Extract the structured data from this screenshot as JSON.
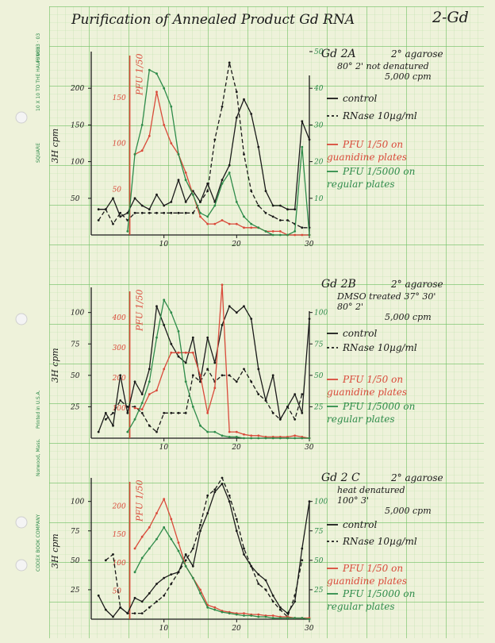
{
  "page": {
    "title": "Purification of Annealed Product Gd RNA",
    "sheet_label": "2-Gd",
    "side_print": [
      "SQUARE",
      "10 X 10 TO THE HALF INCH",
      "46 0813 · 03"
    ],
    "side_print_lower": [
      "CODEX BOOK COMPANY",
      "Norwood, Mass.",
      "Printed in U.S.A."
    ],
    "colors": {
      "paper": "#eef2da",
      "grid_fine": "#b9e0a8",
      "grid_bold": "#6fbf62",
      "ink": "#1a1a1a",
      "red": "#d94a3a",
      "green": "#2e8b4a",
      "holes": "#f4f4f4"
    }
  },
  "chart_data": [
    {
      "type": "line",
      "id": "gd-2a",
      "title": "Gd 2A",
      "notes": [
        "2° agarose",
        "80° 2' not denatured",
        "5,000 cpm"
      ],
      "ylabel": "3H cpm",
      "ylabel_right": "PFU 1/50",
      "x": [
        1,
        2,
        3,
        4,
        5,
        6,
        7,
        8,
        9,
        10,
        11,
        12,
        13,
        14,
        15,
        16,
        17,
        18,
        19,
        20,
        21,
        22,
        23,
        24,
        25,
        26,
        27,
        28,
        29,
        30
      ],
      "xticks": [
        10,
        20,
        30
      ],
      "xlim": [
        0,
        30
      ],
      "left_axis": {
        "ylim": [
          0,
          250
        ],
        "ticks": [
          50,
          100,
          150,
          200
        ]
      },
      "right_axis": {
        "ylim": [
          0,
          50
        ],
        "ticks": [
          10,
          20,
          30,
          40,
          50
        ]
      },
      "pfu_axis": {
        "ticks": [
          50,
          100,
          150
        ]
      },
      "series": [
        {
          "name": "control",
          "style": "solid",
          "color": "ink",
          "axis": "left",
          "values": [
            35,
            35,
            50,
            25,
            30,
            50,
            40,
            35,
            55,
            40,
            45,
            75,
            45,
            60,
            45,
            70,
            45,
            75,
            95,
            160,
            185,
            165,
            120,
            60,
            40,
            40,
            35,
            35,
            155,
            130
          ]
        },
        {
          "name": "RNase 10µg/ml",
          "style": "dashed",
          "color": "ink",
          "axis": "left",
          "values": [
            20,
            35,
            15,
            30,
            20,
            30,
            30,
            30,
            30,
            30,
            30,
            30,
            30,
            30,
            45,
            60,
            130,
            175,
            235,
            195,
            110,
            60,
            40,
            30,
            25,
            20,
            20,
            15,
            10,
            10
          ]
        },
        {
          "name": "PFU 1/50 on guanidine plates",
          "style": "solid",
          "color": "red",
          "axis": "right",
          "values": [
            null,
            null,
            null,
            null,
            null,
            22,
            23,
            27,
            39,
            30,
            25,
            22,
            17,
            11,
            5,
            3,
            3,
            4,
            3,
            3,
            2,
            2,
            2,
            1,
            1,
            1,
            0,
            0,
            0,
            0
          ]
        },
        {
          "name": "PFU 1/5000 on regular plates",
          "style": "solid",
          "color": "green",
          "axis": "right",
          "values": [
            null,
            null,
            null,
            null,
            1,
            22,
            30,
            45,
            44,
            40,
            35,
            22,
            15,
            11,
            6,
            5,
            8,
            14,
            17,
            9,
            5,
            3,
            2,
            1,
            0,
            0,
            0,
            1,
            24,
            0
          ]
        }
      ]
    },
    {
      "type": "line",
      "id": "gd-2b",
      "title": "Gd 2B",
      "notes": [
        "2° agarose",
        "DMSO treated 37° 30'",
        "80° 2'",
        "5,000 cpm"
      ],
      "ylabel": "3H cpm",
      "ylabel_right": "PFU 1/50",
      "x": [
        1,
        2,
        3,
        4,
        5,
        6,
        7,
        8,
        9,
        10,
        11,
        12,
        13,
        14,
        15,
        16,
        17,
        18,
        19,
        20,
        21,
        22,
        23,
        24,
        25,
        26,
        27,
        28,
        29,
        30
      ],
      "xticks": [
        10,
        20,
        30
      ],
      "xlim": [
        0,
        30
      ],
      "left_axis": {
        "ylim": [
          0,
          120
        ],
        "ticks": [
          25,
          50,
          75,
          100
        ]
      },
      "right_axis": {
        "ylim": [
          0,
          120
        ],
        "ticks": [
          25,
          50,
          75,
          100
        ]
      },
      "pfu_axis": {
        "ticks": [
          100,
          200,
          300,
          400
        ]
      },
      "series": [
        {
          "name": "control",
          "style": "solid",
          "color": "ink",
          "axis": "left",
          "values": [
            5,
            20,
            10,
            50,
            20,
            45,
            35,
            55,
            105,
            90,
            75,
            65,
            60,
            80,
            45,
            80,
            60,
            90,
            105,
            100,
            105,
            95,
            55,
            30,
            50,
            15,
            25,
            35,
            20,
            95
          ]
        },
        {
          "name": "RNase 10µg/ml",
          "style": "dashed",
          "color": "ink",
          "axis": "left",
          "values": [
            null,
            15,
            20,
            30,
            25,
            25,
            20,
            10,
            5,
            20,
            20,
            20,
            20,
            50,
            45,
            55,
            45,
            50,
            50,
            45,
            55,
            45,
            35,
            30,
            20,
            15,
            25,
            15,
            35,
            null
          ]
        },
        {
          "name": "PFU 1/50 on guanidine plates",
          "style": "solid",
          "color": "red",
          "axis": "right",
          "values": [
            null,
            null,
            null,
            null,
            null,
            24,
            23,
            35,
            38,
            55,
            68,
            68,
            68,
            68,
            50,
            20,
            40,
            122,
            5,
            5,
            3,
            2,
            2,
            1,
            1,
            1,
            1,
            2,
            1,
            0
          ]
        },
        {
          "name": "PFU 1/5000 on regular plates",
          "style": "solid",
          "color": "green",
          "axis": "right",
          "values": [
            null,
            null,
            null,
            null,
            5,
            15,
            28,
            45,
            80,
            110,
            100,
            85,
            45,
            25,
            10,
            5,
            5,
            2,
            1,
            1,
            0,
            0,
            0,
            0,
            0,
            0,
            0,
            0,
            0,
            0
          ]
        }
      ]
    },
    {
      "type": "line",
      "id": "gd-2c",
      "title": "Gd 2 C",
      "notes": [
        "2° agarose",
        "heat denatured",
        "100° 3'",
        "5,000 cpm"
      ],
      "ylabel": "3H cpm",
      "ylabel_right": "PFU 1/50",
      "x": [
        1,
        2,
        3,
        4,
        5,
        6,
        7,
        8,
        9,
        10,
        11,
        12,
        13,
        14,
        15,
        16,
        17,
        18,
        19,
        20,
        21,
        22,
        23,
        24,
        25,
        26,
        27,
        28,
        29,
        30
      ],
      "xticks": [
        10,
        20,
        30
      ],
      "xlim": [
        0,
        30
      ],
      "left_axis": {
        "ylim": [
          0,
          120
        ],
        "ticks": [
          25,
          50,
          75,
          100
        ]
      },
      "right_axis": {
        "ylim": [
          0,
          120
        ],
        "ticks": [
          25,
          50,
          75,
          100
        ]
      },
      "pfu_axis": {
        "ticks": [
          50,
          100,
          150,
          200
        ]
      },
      "series": [
        {
          "name": "control",
          "style": "solid",
          "color": "ink",
          "axis": "left",
          "values": [
            20,
            8,
            2,
            10,
            5,
            18,
            15,
            22,
            30,
            35,
            38,
            40,
            55,
            45,
            75,
            90,
            108,
            115,
            100,
            75,
            55,
            45,
            38,
            33,
            20,
            10,
            5,
            15,
            60,
            100
          ]
        },
        {
          "name": "RNase 10µg/ml",
          "style": "dashed",
          "color": "ink",
          "axis": "left",
          "values": [
            null,
            50,
            55,
            10,
            5,
            5,
            5,
            10,
            15,
            20,
            30,
            40,
            50,
            60,
            80,
            105,
            110,
            120,
            105,
            85,
            60,
            45,
            30,
            25,
            15,
            8,
            2,
            20,
            50,
            null
          ]
        },
        {
          "name": "PFU 1/50 on guanidine plates",
          "style": "solid",
          "color": "red",
          "axis": "right",
          "values": [
            null,
            null,
            null,
            null,
            null,
            60,
            70,
            78,
            90,
            102,
            85,
            65,
            45,
            35,
            25,
            12,
            10,
            7,
            6,
            5,
            5,
            4,
            4,
            3,
            3,
            2,
            2,
            1,
            1,
            1
          ]
        },
        {
          "name": "PFU 1/5000 on regular plates",
          "style": "solid",
          "color": "green",
          "axis": "right",
          "values": [
            null,
            null,
            null,
            null,
            null,
            40,
            52,
            60,
            68,
            78,
            68,
            58,
            45,
            35,
            22,
            10,
            8,
            6,
            5,
            4,
            3,
            3,
            2,
            2,
            1,
            1,
            1,
            1,
            1,
            0
          ]
        }
      ]
    }
  ]
}
